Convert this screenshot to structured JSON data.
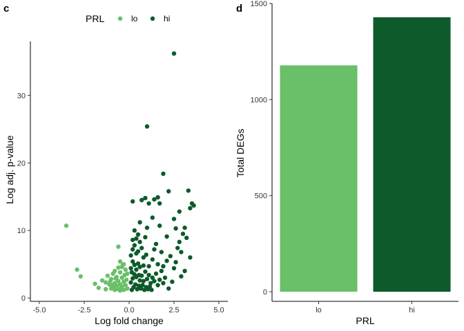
{
  "panels": {
    "left_letter": "c",
    "right_letter": "d"
  },
  "colors": {
    "lo": "#6abf69",
    "hi": "#0d5a2a"
  },
  "chart_data": [
    {
      "type": "scatter",
      "title": "",
      "xlabel": "Log fold change",
      "ylabel": "Log adj. p-value",
      "xlim": [
        -5.5,
        5.5
      ],
      "ylim": [
        -0.5,
        38
      ],
      "xticks": [
        -5.0,
        -2.5,
        0.0,
        2.5,
        5.0
      ],
      "xtick_labels": [
        "-5.0",
        "-2.5",
        "0.0",
        "2.5",
        "5.0"
      ],
      "yticks": [
        0,
        10,
        20,
        30
      ],
      "ytick_labels": [
        "0",
        "10",
        "20",
        "30"
      ],
      "grid": false,
      "legend": {
        "title": "PRL",
        "placement": "top",
        "entries": [
          "lo",
          "hi"
        ]
      },
      "series": [
        {
          "name": "lo",
          "points": [
            [
              -3.5,
              10.7
            ],
            [
              -2.9,
              4.2
            ],
            [
              -2.7,
              3.2
            ],
            [
              -1.9,
              2.1
            ],
            [
              -1.7,
              1.5
            ],
            [
              -1.5,
              2.6
            ],
            [
              -1.3,
              1.3
            ],
            [
              -1.2,
              3.3
            ],
            [
              -1.1,
              2.0
            ],
            [
              -1.0,
              1.4
            ],
            [
              -1.0,
              2.8
            ],
            [
              -0.9,
              3.6
            ],
            [
              -0.9,
              1.6
            ],
            [
              -0.8,
              4.0
            ],
            [
              -0.8,
              2.2
            ],
            [
              -0.8,
              1.2
            ],
            [
              -0.7,
              3.1
            ],
            [
              -0.7,
              1.8
            ],
            [
              -0.6,
              4.5
            ],
            [
              -0.6,
              2.5
            ],
            [
              -0.6,
              1.3
            ],
            [
              -0.5,
              3.8
            ],
            [
              -0.5,
              2.0
            ],
            [
              -0.5,
              1.1
            ],
            [
              -0.4,
              4.6
            ],
            [
              -0.4,
              3.0
            ],
            [
              -0.4,
              1.7
            ],
            [
              -0.3,
              5.0
            ],
            [
              -0.3,
              2.4
            ],
            [
              -0.3,
              1.2
            ],
            [
              -0.25,
              3.4
            ],
            [
              -0.2,
              4.2
            ],
            [
              -0.2,
              1.9
            ],
            [
              -0.15,
              2.7
            ],
            [
              -0.1,
              3.6
            ],
            [
              -0.1,
              1.4
            ],
            [
              -0.6,
              7.6
            ],
            [
              -0.5,
              5.4
            ],
            [
              -0.35,
              4.9
            ],
            [
              -1.3,
              2.3
            ],
            [
              -0.95,
              1.9
            ],
            [
              -0.75,
              2.9
            ],
            [
              -0.45,
              1.5
            ],
            [
              -1.05,
              2.5
            ]
          ]
        },
        {
          "name": "hi",
          "points": [
            [
              2.5,
              36.2
            ],
            [
              1.0,
              25.4
            ],
            [
              1.9,
              18.4
            ],
            [
              1.1,
              14.0
            ],
            [
              1.4,
              14.6
            ],
            [
              1.6,
              14.9
            ],
            [
              1.7,
              14.0
            ],
            [
              3.3,
              15.9
            ],
            [
              2.2,
              15.8
            ],
            [
              0.9,
              14.8
            ],
            [
              0.7,
              14.5
            ],
            [
              1.3,
              11.9
            ],
            [
              2.5,
              11.7
            ],
            [
              3.5,
              14.0
            ],
            [
              3.6,
              13.7
            ],
            [
              3.4,
              13.3
            ],
            [
              2.8,
              12.8
            ],
            [
              0.2,
              14.3
            ],
            [
              0.6,
              11.2
            ],
            [
              1.0,
              10.4
            ],
            [
              1.7,
              10.7
            ],
            [
              2.6,
              10.3
            ],
            [
              3.1,
              10.4
            ],
            [
              3.0,
              9.5
            ],
            [
              2.8,
              8.3
            ],
            [
              2.9,
              6.8
            ],
            [
              3.4,
              6.0
            ],
            [
              3.1,
              4.0
            ],
            [
              2.9,
              3.2
            ],
            [
              2.5,
              4.4
            ],
            [
              2.1,
              5.5
            ],
            [
              1.8,
              6.8
            ],
            [
              1.5,
              8.0
            ],
            [
              1.3,
              5.7
            ],
            [
              1.1,
              4.7
            ],
            [
              0.9,
              9.0
            ],
            [
              0.8,
              6.0
            ],
            [
              0.6,
              8.3
            ],
            [
              0.5,
              9.4
            ],
            [
              0.4,
              6.6
            ],
            [
              0.3,
              10.0
            ],
            [
              0.3,
              7.8
            ],
            [
              0.2,
              5.4
            ],
            [
              0.1,
              4.4
            ],
            [
              0.1,
              2.3
            ],
            [
              0.2,
              2.9
            ],
            [
              0.3,
              3.5
            ],
            [
              0.4,
              4.2
            ],
            [
              0.5,
              5.1
            ],
            [
              0.6,
              4.6
            ],
            [
              0.7,
              3.3
            ],
            [
              0.8,
              2.5
            ],
            [
              0.9,
              3.9
            ],
            [
              1.0,
              2.8
            ],
            [
              1.1,
              3.4
            ],
            [
              1.2,
              2.2
            ],
            [
              1.3,
              3.0
            ],
            [
              1.4,
              2.5
            ],
            [
              1.5,
              3.6
            ],
            [
              1.6,
              1.9
            ],
            [
              1.7,
              2.7
            ],
            [
              1.8,
              4.0
            ],
            [
              1.9,
              2.2
            ],
            [
              2.0,
              3.0
            ],
            [
              2.2,
              1.4
            ],
            [
              2.4,
              2.4
            ],
            [
              0.15,
              1.2
            ],
            [
              0.25,
              1.6
            ],
            [
              0.35,
              2.0
            ],
            [
              0.45,
              1.3
            ],
            [
              0.55,
              1.8
            ],
            [
              0.65,
              1.4
            ],
            [
              0.75,
              1.9
            ],
            [
              0.85,
              1.2
            ],
            [
              0.95,
              1.6
            ],
            [
              1.05,
              1.3
            ],
            [
              1.15,
              1.7
            ],
            [
              1.25,
              1.2
            ],
            [
              0.1,
              6.3
            ],
            [
              0.2,
              7.2
            ],
            [
              0.4,
              8.8
            ],
            [
              0.7,
              7.4
            ],
            [
              0.5,
              6.9
            ],
            [
              0.6,
              2.6
            ],
            [
              0.3,
              4.9
            ],
            [
              0.4,
              3.1
            ],
            [
              0.8,
              4.8
            ],
            [
              0.2,
              8.6
            ],
            [
              2.3,
              6.2
            ],
            [
              2.6,
              5.3
            ],
            [
              1.6,
              5.0
            ],
            [
              1.9,
              4.7
            ],
            [
              2.7,
              7.4
            ],
            [
              3.2,
              8.9
            ],
            [
              2.1,
              9.1
            ],
            [
              1.4,
              7.2
            ],
            [
              0.95,
              6.4
            ],
            [
              0.15,
              3.8
            ],
            [
              0.55,
              3.4
            ]
          ]
        }
      ]
    },
    {
      "type": "bar",
      "title": "",
      "xlabel": "PRL",
      "ylabel": "Total DEGs",
      "categories": [
        "lo",
        "hi"
      ],
      "values": [
        1178,
        1428
      ],
      "ylim": [
        -50,
        1500
      ],
      "yticks": [
        0,
        500,
        1000,
        1500
      ],
      "ytick_labels": [
        "0",
        "500",
        "1000",
        "1500"
      ],
      "grid": false
    }
  ]
}
